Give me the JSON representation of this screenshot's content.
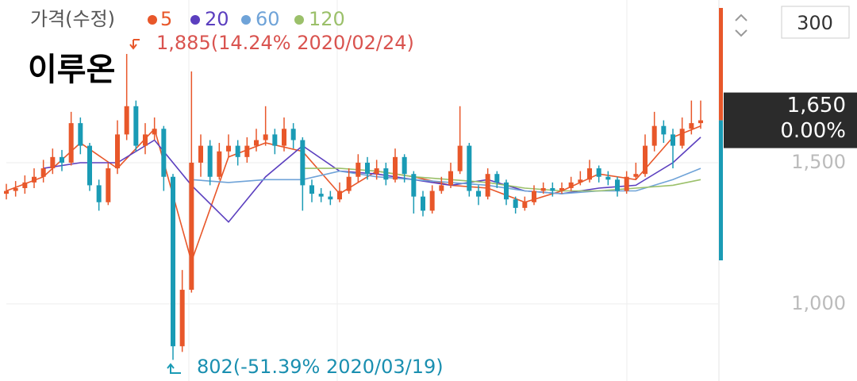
{
  "chart_data": {
    "type": "candlestick",
    "title": "이루온",
    "legend_label": "가격(수정)",
    "period": "300",
    "up_color": "#e8572a",
    "down_color": "#1a9bb5",
    "ylim": [
      727,
      2076
    ],
    "yticks": [
      {
        "value": 1500,
        "label": "1,500"
      },
      {
        "value": 1000,
        "label": "1,000"
      }
    ],
    "grid": true,
    "last_price": {
      "value": 1650,
      "label": "1,650"
    },
    "change_label": "0.00%",
    "high_annotation": "1,885(14.24% 2020/02/24)",
    "low_annotation": "802(-51.39% 2020/03/19)",
    "open": [
      1390,
      1400,
      1410,
      1430,
      1450,
      1480,
      1520,
      1500,
      1640,
      1560,
      1420,
      1360,
      1480,
      1600,
      1700,
      1560,
      1600,
      1620,
      1450,
      850,
      1050,
      1500,
      1560,
      1450,
      1540,
      1560,
      1520,
      1560,
      1580,
      1600,
      1560,
      1620,
      1580,
      1420,
      1390,
      1380,
      1370,
      1400,
      1450,
      1500,
      1460,
      1480,
      1440,
      1520,
      1460,
      1380,
      1330,
      1400,
      1420,
      1470,
      1560,
      1400,
      1380,
      1460,
      1430,
      1370,
      1340,
      1360,
      1400,
      1410,
      1400,
      1410,
      1430,
      1440,
      1480,
      1450,
      1440,
      1400,
      1450,
      1460,
      1560,
      1630,
      1600,
      1560,
      1620,
      1640
    ],
    "high": [
      1425,
      1435,
      1455,
      1480,
      1510,
      1550,
      1545,
      1680,
      1660,
      1570,
      1440,
      1500,
      1650,
      1885,
      1720,
      1640,
      1660,
      1630,
      1460,
      1120,
      1823,
      1600,
      1580,
      1570,
      1600,
      1580,
      1590,
      1620,
      1700,
      1620,
      1660,
      1640,
      1590,
      1440,
      1410,
      1400,
      1430,
      1480,
      1530,
      1520,
      1510,
      1500,
      1550,
      1530,
      1470,
      1400,
      1420,
      1450,
      1500,
      1700,
      1570,
      1420,
      1480,
      1470,
      1440,
      1380,
      1380,
      1420,
      1430,
      1430,
      1430,
      1450,
      1470,
      1510,
      1490,
      1470,
      1450,
      1470,
      1500,
      1600,
      1680,
      1650,
      1620,
      1660,
      1720,
      1720
    ],
    "low": [
      1370,
      1380,
      1390,
      1410,
      1430,
      1460,
      1470,
      1490,
      1530,
      1400,
      1330,
      1350,
      1460,
      1580,
      1540,
      1530,
      1580,
      1400,
      802,
      830,
      1040,
      1450,
      1420,
      1440,
      1520,
      1490,
      1500,
      1540,
      1560,
      1530,
      1540,
      1550,
      1330,
      1360,
      1360,
      1350,
      1360,
      1390,
      1430,
      1440,
      1440,
      1420,
      1430,
      1430,
      1320,
      1310,
      1320,
      1390,
      1410,
      1460,
      1380,
      1350,
      1370,
      1410,
      1350,
      1320,
      1330,
      1350,
      1390,
      1380,
      1390,
      1400,
      1420,
      1430,
      1430,
      1420,
      1380,
      1390,
      1440,
      1450,
      1540,
      1570,
      1480,
      1550,
      1600,
      1620
    ],
    "close": [
      1400,
      1410,
      1430,
      1450,
      1480,
      1520,
      1500,
      1640,
      1560,
      1420,
      1360,
      1480,
      1600,
      1700,
      1560,
      1600,
      1620,
      1450,
      850,
      1050,
      1500,
      1560,
      1450,
      1540,
      1560,
      1520,
      1560,
      1580,
      1600,
      1560,
      1620,
      1580,
      1420,
      1390,
      1380,
      1370,
      1400,
      1450,
      1500,
      1460,
      1480,
      1440,
      1520,
      1460,
      1380,
      1330,
      1400,
      1420,
      1470,
      1560,
      1400,
      1380,
      1460,
      1430,
      1370,
      1340,
      1360,
      1400,
      1410,
      1400,
      1410,
      1430,
      1440,
      1480,
      1450,
      1440,
      1400,
      1450,
      1460,
      1560,
      1630,
      1600,
      1560,
      1620,
      1640,
      1650
    ],
    "ma_x": [
      0,
      4,
      8,
      12,
      16,
      20,
      24,
      28,
      32,
      36,
      40,
      44,
      48,
      52,
      56,
      60,
      64,
      68,
      72,
      75
    ],
    "series": [
      {
        "name": "5",
        "color": "#e8572a",
        "values": [
          1400,
          1450,
          1570,
          1480,
          1620,
          1150,
          1520,
          1570,
          1540,
          1390,
          1470,
          1450,
          1420,
          1410,
          1360,
          1400,
          1460,
          1440,
          1590,
          1630
        ]
      },
      {
        "name": "20",
        "color": "#5b3fbf",
        "values": [
          null,
          1480,
          1500,
          1500,
          1580,
          1420,
          1290,
          1450,
          1560,
          1470,
          1460,
          1440,
          1420,
          1440,
          1400,
          1390,
          1410,
          1420,
          1500,
          1590
        ]
      },
      {
        "name": "60",
        "color": "#6fa3d8",
        "values": [
          null,
          null,
          null,
          null,
          null,
          1440,
          1430,
          1440,
          1440,
          1470,
          1450,
          1440,
          1430,
          1420,
          1400,
          1390,
          1400,
          1400,
          1440,
          1480
        ]
      },
      {
        "name": "120",
        "color": "#9bc06a",
        "values": [
          null,
          null,
          null,
          null,
          null,
          null,
          null,
          null,
          1480,
          1480,
          1470,
          1450,
          1440,
          1430,
          1410,
          1400,
          1400,
          1410,
          1420,
          1440
        ]
      }
    ]
  }
}
